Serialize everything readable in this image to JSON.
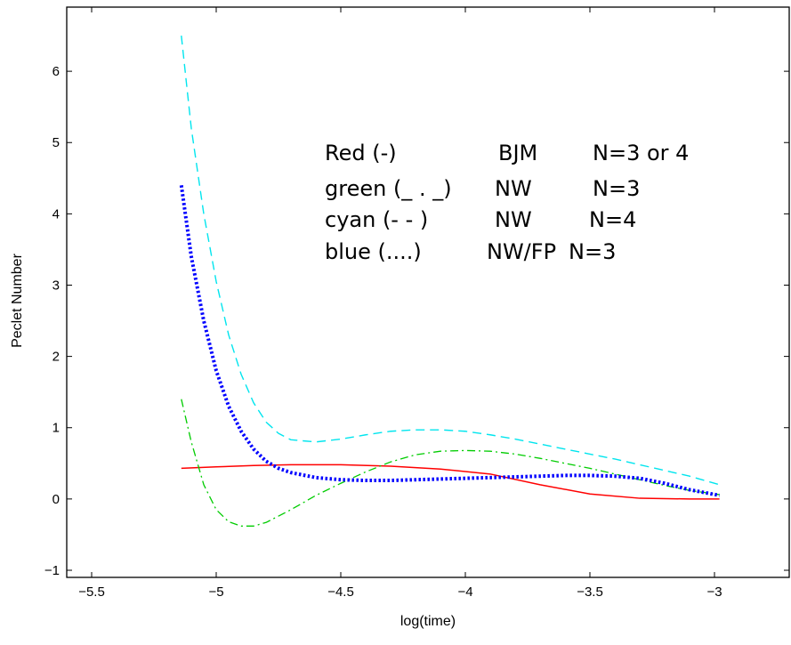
{
  "chart_data": {
    "type": "line",
    "xlabel": "log(time)",
    "ylabel": "Peclet Number",
    "xlim": [
      -5.6,
      -2.7
    ],
    "ylim": [
      -1.1,
      6.9
    ],
    "x_ticks": [
      -5.5,
      -5,
      -4.5,
      -4,
      -3.5,
      -3
    ],
    "x_tick_labels": [
      "−5.5",
      "−5",
      "−4.5",
      "−4",
      "−3.5",
      "−3"
    ],
    "y_ticks": [
      -1,
      0,
      1,
      2,
      3,
      4,
      5,
      6
    ],
    "y_tick_labels": [
      "−1",
      "0",
      "1",
      "2",
      "3",
      "4",
      "5",
      "6"
    ],
    "grid": false,
    "legend_position": "top-right",
    "annotation_lines": [
      {
        "col1": "Red (-)",
        "col2": "BJM",
        "col3": "N=3 or 4"
      },
      {
        "col1": "green (_ . _)",
        "col2": "NW",
        "col3": "N=3"
      },
      {
        "col1": "cyan (- - )",
        "col2": "NW",
        "col3": "N=4"
      },
      {
        "col1": "blue (....)",
        "col2": "NW/FP",
        "col3": "N=3"
      }
    ],
    "series": [
      {
        "color": "#ff0000",
        "style": "solid",
        "x": [
          -5.14,
          -5.0,
          -4.85,
          -4.7,
          -4.5,
          -4.3,
          -4.1,
          -3.9,
          -3.7,
          -3.5,
          -3.3,
          -3.1,
          -2.98
        ],
        "y": [
          0.43,
          0.45,
          0.47,
          0.48,
          0.48,
          0.46,
          0.42,
          0.35,
          0.2,
          0.07,
          0.01,
          0.0,
          0.0
        ]
      },
      {
        "color": "#00cc00",
        "style": "dashdot",
        "x": [
          -5.14,
          -5.1,
          -5.05,
          -5.0,
          -4.95,
          -4.9,
          -4.85,
          -4.8,
          -4.7,
          -4.6,
          -4.5,
          -4.4,
          -4.3,
          -4.2,
          -4.1,
          -4.0,
          -3.9,
          -3.8,
          -3.7,
          -3.6,
          -3.5,
          -3.4,
          -3.3,
          -3.2,
          -3.1,
          -2.98
        ],
        "y": [
          1.4,
          0.8,
          0.2,
          -0.15,
          -0.32,
          -0.38,
          -0.38,
          -0.33,
          -0.15,
          0.05,
          0.22,
          0.38,
          0.52,
          0.62,
          0.67,
          0.68,
          0.67,
          0.63,
          0.57,
          0.5,
          0.43,
          0.35,
          0.27,
          0.19,
          0.12,
          0.06
        ]
      },
      {
        "color": "#00e5ee",
        "style": "dashed",
        "x": [
          -5.14,
          -5.1,
          -5.05,
          -5.0,
          -4.95,
          -4.9,
          -4.85,
          -4.8,
          -4.75,
          -4.7,
          -4.6,
          -4.5,
          -4.4,
          -4.3,
          -4.2,
          -4.1,
          -4.0,
          -3.9,
          -3.8,
          -3.7,
          -3.6,
          -3.5,
          -3.4,
          -3.3,
          -3.2,
          -3.1,
          -2.98
        ],
        "y": [
          6.5,
          5.2,
          4.0,
          3.05,
          2.3,
          1.75,
          1.35,
          1.08,
          0.92,
          0.83,
          0.8,
          0.84,
          0.9,
          0.95,
          0.97,
          0.97,
          0.95,
          0.9,
          0.84,
          0.77,
          0.7,
          0.63,
          0.56,
          0.48,
          0.4,
          0.32,
          0.2
        ]
      },
      {
        "color": "#0000ff",
        "style": "dotted",
        "x": [
          -5.14,
          -5.1,
          -5.05,
          -5.0,
          -4.95,
          -4.9,
          -4.85,
          -4.8,
          -4.75,
          -4.7,
          -4.6,
          -4.5,
          -4.4,
          -4.3,
          -4.2,
          -4.1,
          -4.0,
          -3.9,
          -3.8,
          -3.7,
          -3.6,
          -3.5,
          -3.4,
          -3.3,
          -3.2,
          -3.1,
          -2.98
        ],
        "y": [
          4.4,
          3.4,
          2.5,
          1.8,
          1.3,
          0.95,
          0.7,
          0.53,
          0.43,
          0.37,
          0.3,
          0.27,
          0.26,
          0.26,
          0.27,
          0.28,
          0.29,
          0.3,
          0.31,
          0.32,
          0.33,
          0.33,
          0.32,
          0.29,
          0.22,
          0.13,
          0.05
        ]
      }
    ]
  }
}
